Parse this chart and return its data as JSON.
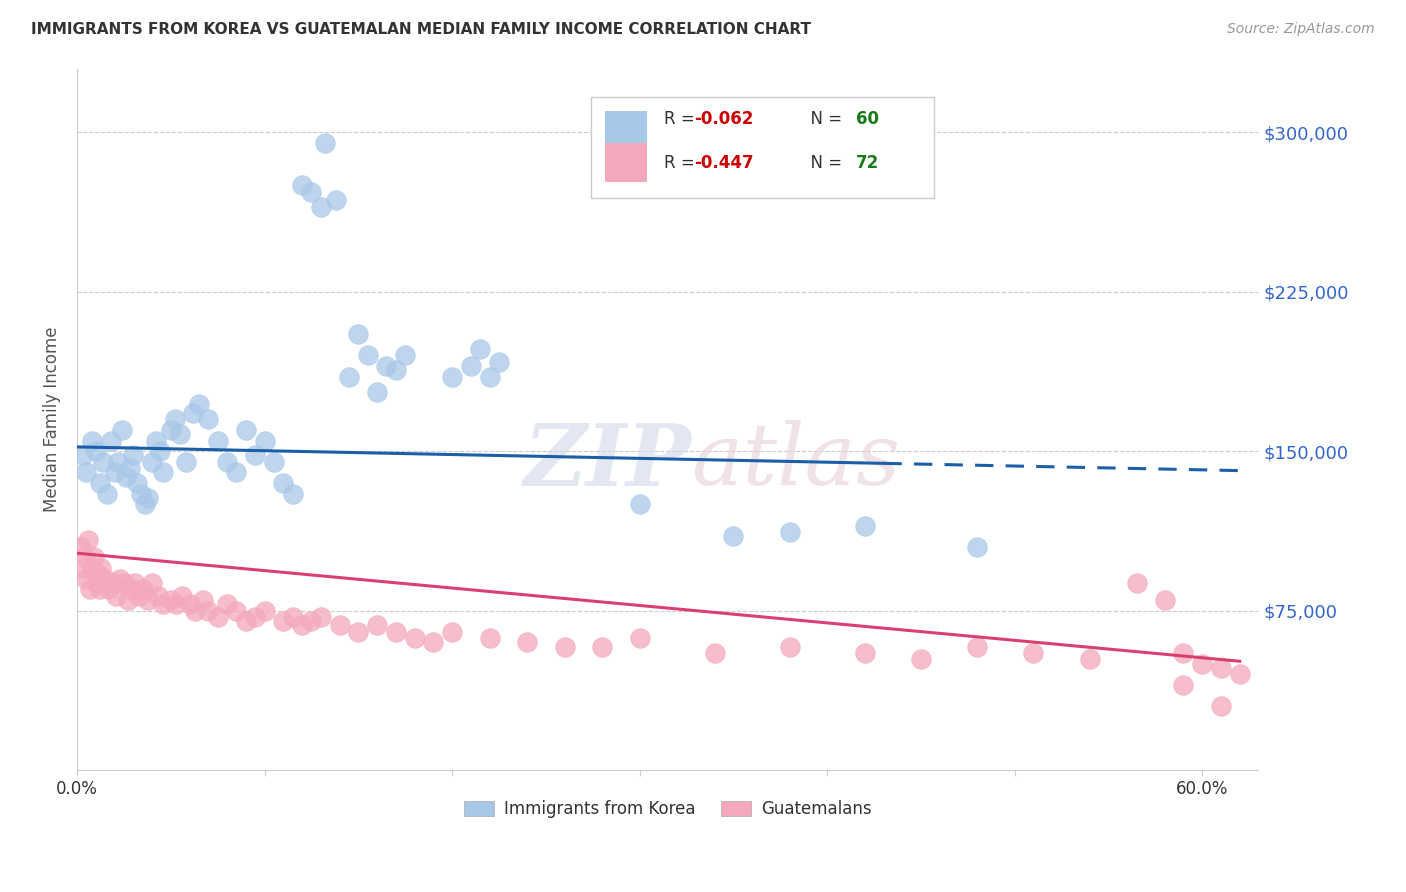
{
  "title": "IMMIGRANTS FROM KOREA VS GUATEMALAN MEDIAN FAMILY INCOME CORRELATION CHART",
  "source": "Source: ZipAtlas.com",
  "ylabel": "Median Family Income",
  "yticks": [
    0,
    75000,
    150000,
    225000,
    300000
  ],
  "ytick_labels": [
    "",
    "$75,000",
    "$150,000",
    "$225,000",
    "$300,000"
  ],
  "ylim": [
    0,
    330000
  ],
  "xlim": [
    0.0,
    0.63
  ],
  "watermark_zip": "ZIP",
  "watermark_atlas": "atlas",
  "legend_blue_r": "R = -0.062",
  "legend_blue_n": "N = 60",
  "legend_pink_r": "R = -0.447",
  "legend_pink_n": "N = 72",
  "legend_blue_label": "Immigrants from Korea",
  "legend_pink_label": "Guatemalans",
  "blue_color": "#a8c8e8",
  "pink_color": "#f4a8bc",
  "trend_blue_color": "#1a5fa8",
  "trend_pink_color": "#d94070",
  "r_color": "#cc0000",
  "n_color": "#1a7a1a",
  "blue_scatter_x": [
    0.003,
    0.005,
    0.008,
    0.01,
    0.012,
    0.014,
    0.016,
    0.018,
    0.02,
    0.022,
    0.024,
    0.026,
    0.028,
    0.03,
    0.032,
    0.034,
    0.036,
    0.038,
    0.04,
    0.042,
    0.044,
    0.046,
    0.05,
    0.052,
    0.055,
    0.058,
    0.062,
    0.065,
    0.07,
    0.075,
    0.08,
    0.085,
    0.09,
    0.095,
    0.1,
    0.105,
    0.11,
    0.115,
    0.12,
    0.125,
    0.13,
    0.132,
    0.138,
    0.145,
    0.15,
    0.155,
    0.16,
    0.165,
    0.17,
    0.175,
    0.2,
    0.21,
    0.215,
    0.22,
    0.225,
    0.3,
    0.35,
    0.38,
    0.42,
    0.48
  ],
  "blue_scatter_y": [
    148000,
    140000,
    155000,
    150000,
    135000,
    145000,
    130000,
    155000,
    140000,
    145000,
    160000,
    138000,
    142000,
    148000,
    135000,
    130000,
    125000,
    128000,
    145000,
    155000,
    150000,
    140000,
    160000,
    165000,
    158000,
    145000,
    168000,
    172000,
    165000,
    155000,
    145000,
    140000,
    160000,
    148000,
    155000,
    145000,
    135000,
    130000,
    275000,
    272000,
    265000,
    295000,
    268000,
    185000,
    205000,
    195000,
    178000,
    190000,
    188000,
    195000,
    185000,
    190000,
    198000,
    185000,
    192000,
    125000,
    110000,
    112000,
    115000,
    105000
  ],
  "pink_scatter_x": [
    0.002,
    0.003,
    0.004,
    0.005,
    0.006,
    0.007,
    0.008,
    0.009,
    0.01,
    0.011,
    0.012,
    0.013,
    0.015,
    0.017,
    0.019,
    0.021,
    0.023,
    0.025,
    0.027,
    0.029,
    0.031,
    0.033,
    0.035,
    0.038,
    0.04,
    0.043,
    0.046,
    0.05,
    0.053,
    0.056,
    0.06,
    0.063,
    0.067,
    0.07,
    0.075,
    0.08,
    0.085,
    0.09,
    0.095,
    0.1,
    0.11,
    0.115,
    0.12,
    0.125,
    0.13,
    0.14,
    0.15,
    0.16,
    0.17,
    0.18,
    0.19,
    0.2,
    0.22,
    0.24,
    0.26,
    0.28,
    0.3,
    0.34,
    0.38,
    0.42,
    0.45,
    0.48,
    0.51,
    0.54,
    0.565,
    0.58,
    0.59,
    0.6,
    0.61,
    0.62,
    0.61,
    0.59
  ],
  "pink_scatter_y": [
    105000,
    95000,
    100000,
    90000,
    108000,
    85000,
    95000,
    100000,
    88000,
    92000,
    85000,
    95000,
    90000,
    85000,
    88000,
    82000,
    90000,
    88000,
    80000,
    85000,
    88000,
    82000,
    85000,
    80000,
    88000,
    82000,
    78000,
    80000,
    78000,
    82000,
    78000,
    75000,
    80000,
    75000,
    72000,
    78000,
    75000,
    70000,
    72000,
    75000,
    70000,
    72000,
    68000,
    70000,
    72000,
    68000,
    65000,
    68000,
    65000,
    62000,
    60000,
    65000,
    62000,
    60000,
    58000,
    58000,
    62000,
    55000,
    58000,
    55000,
    52000,
    58000,
    55000,
    52000,
    88000,
    80000,
    55000,
    50000,
    48000,
    45000,
    30000,
    40000
  ],
  "blue_trend_x0": 0.0,
  "blue_trend_x_solid_end": 0.43,
  "blue_trend_x_dash_end": 0.62,
  "blue_trend_y_intercept": 152000,
  "blue_trend_slope": -18000,
  "pink_trend_y_intercept": 102000,
  "pink_trend_slope": -82000,
  "pink_trend_x_end": 0.62
}
